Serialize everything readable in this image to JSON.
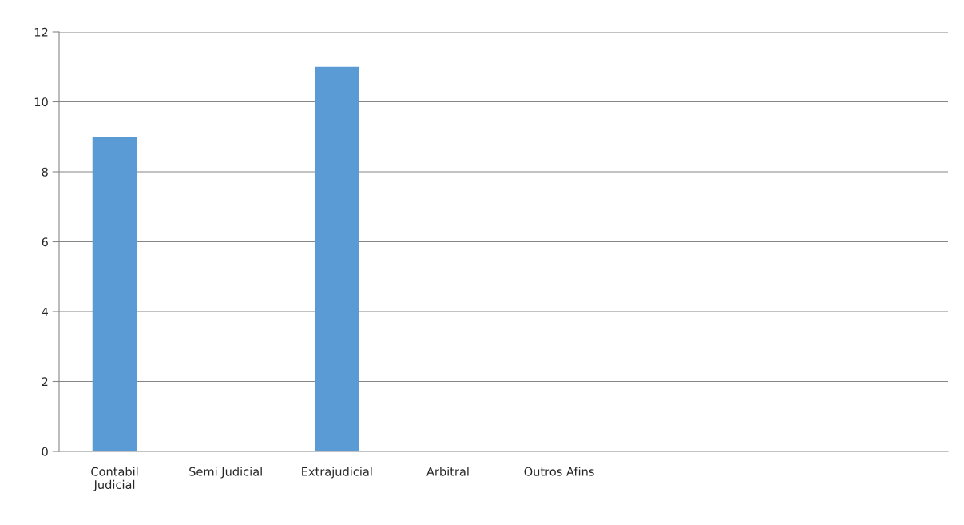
{
  "chart_data": {
    "type": "bar",
    "categories": [
      "Contabil\nJudicial",
      "Semi Judicial",
      "Extrajudicial",
      "Arbitral",
      "Outros Afins",
      null,
      null,
      null
    ],
    "values": [
      9,
      null,
      11,
      null,
      null,
      null,
      null,
      null
    ],
    "color": "#5b9bd5",
    "ylim": [
      0,
      12
    ],
    "yticks": [
      0,
      2,
      4,
      6,
      8,
      10,
      12
    ],
    "grid": "y"
  }
}
